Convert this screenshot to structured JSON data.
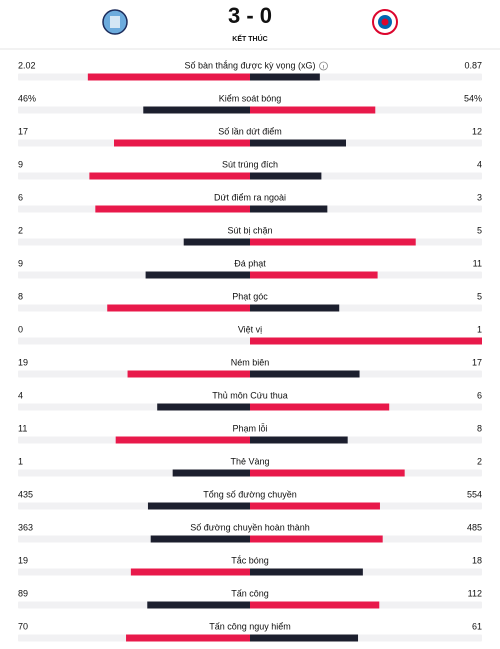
{
  "header": {
    "score": "3 - 0",
    "status": "KẾT THÚC"
  },
  "colors": {
    "leader": "#e8194a",
    "trailer": "#1c1f2e",
    "track": "#f1f1f3"
  },
  "stats": [
    {
      "label": "Số bàn thắng được kỳ vọng (xG)",
      "home": 2.02,
      "away": 0.87
    },
    {
      "label": "Kiểm soát bóng",
      "home": {
        "value": 46,
        "label": "46%"
      },
      "away": {
        "value": 54,
        "label": "54%"
      }
    },
    {
      "label": "Số lần dứt điểm",
      "home": 17,
      "away": 12
    },
    {
      "label": "Sút trúng đích",
      "home": 9,
      "away": 4
    },
    {
      "label": "Dứt điểm ra ngoài",
      "home": 6,
      "away": 3
    },
    {
      "label": "Sút bị chặn",
      "home": 2,
      "away": 5
    },
    {
      "label": "Đá phạt",
      "home": 9,
      "away": 11
    },
    {
      "label": "Phạt góc",
      "home": 8,
      "away": 5
    },
    {
      "label": "Việt vị",
      "home": 0,
      "away": 1
    },
    {
      "label": "Ném biên",
      "home": 19,
      "away": 17
    },
    {
      "label": "Thủ môn Cứu thua",
      "home": 4,
      "away": 6
    },
    {
      "label": "Phạm lỗi",
      "home": 11,
      "away": 8
    },
    {
      "label": "Thẻ Vàng",
      "home": 1,
      "away": 2
    },
    {
      "label": "Tổng số đường chuyền",
      "home": 435,
      "away": 554
    },
    {
      "label": "Số đường chuyền hoàn thành",
      "home": 363,
      "away": 485
    },
    {
      "label": "Tắc bóng",
      "home": 19,
      "away": 18
    },
    {
      "label": "Tấn công",
      "home": 89,
      "away": 112
    },
    {
      "label": "Tấn công nguy hiểm",
      "home": 70,
      "away": 61
    }
  ]
}
